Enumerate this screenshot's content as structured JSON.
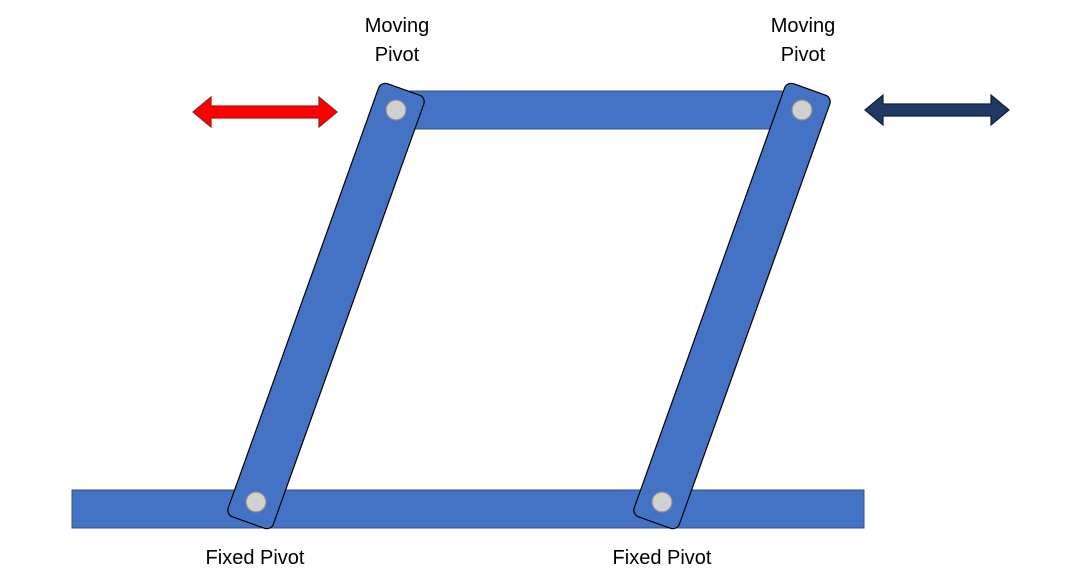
{
  "labels": {
    "moving_pivot_left": [
      "Moving",
      "Pivot"
    ],
    "moving_pivot_right": [
      "Moving",
      "Pivot"
    ],
    "fixed_pivot_left": "Fixed Pivot",
    "fixed_pivot_right": "Fixed Pivot"
  },
  "colors": {
    "link_fill": "#4472C4",
    "link_stroke": "#000000",
    "pivot_fill": "#D0D0D0",
    "pivot_stroke": "#8C8C8C",
    "arrow_left": "#FF0000",
    "arrow_left_stroke": "#9E1B1B",
    "arrow_right": "#1F3864",
    "arrow_right_stroke": "#101E36"
  },
  "icons": {
    "arrow_left": "double-headed-arrow-icon",
    "arrow_right": "double-headed-arrow-icon"
  }
}
